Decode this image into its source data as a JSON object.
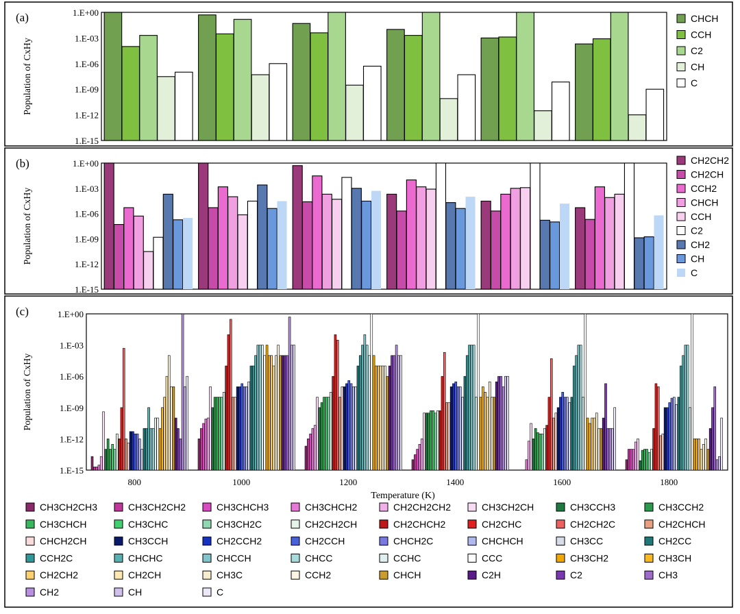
{
  "chart_data": [
    {
      "type": "bar",
      "panel_label": "(a)",
      "ylabel": "Population of CxHy",
      "yscale": "log",
      "ylim": [
        1e-15,
        1
      ],
      "yticks": [
        "1.E+00",
        "1.E-03",
        "1.E-06",
        "1.E-09",
        "1.E-12",
        "1.E-15"
      ],
      "categories": [
        "800",
        "1000",
        "1200",
        "1400",
        "1600",
        "1800"
      ],
      "legend_position": "right",
      "series": [
        {
          "name": "CHCH",
          "color": "#70a050",
          "values": [
            1,
            0.5,
            0.05,
            0.01,
            0.001,
            0.0002
          ]
        },
        {
          "name": "CCH",
          "color": "#7fc040",
          "values": [
            0.0001,
            0.003,
            0.004,
            0.002,
            0.0013,
            0.0008
          ]
        },
        {
          "name": "C2",
          "color": "#a8d890",
          "values": [
            0.002,
            0.15,
            1,
            1,
            1,
            1
          ]
        },
        {
          "name": "CH",
          "color": "#e2efd9",
          "values": [
            3e-08,
            5e-08,
            3e-09,
            8e-11,
            3e-12,
            1e-12
          ]
        },
        {
          "name": "C",
          "color": "#ffffff",
          "values": [
            1e-07,
            1e-06,
            5e-07,
            5e-08,
            7e-09,
            1e-09
          ]
        }
      ]
    },
    {
      "type": "bar",
      "panel_label": "(b)",
      "ylabel": "Population of CxHy",
      "yscale": "log",
      "ylim": [
        1e-15,
        1
      ],
      "yticks": [
        "1.E+00",
        "1.E-03",
        "1.E-06",
        "1.E-09",
        "1.E-12",
        "1.E-15"
      ],
      "categories": [
        "800",
        "1000",
        "1200",
        "1400",
        "1600",
        "1800"
      ],
      "legend_position": "right",
      "series": [
        {
          "name": "CH2CH2",
          "color": "#9b3a7a",
          "values": [
            1,
            1,
            0.5,
            0.0002,
            3e-05,
            5e-06
          ]
        },
        {
          "name": "CH2CH",
          "color": "#c74ba8",
          "values": [
            5e-08,
            5e-06,
            2.5e-05,
            2e-06,
            2e-06,
            2e-07
          ]
        },
        {
          "name": "CCH2",
          "color": "#ea6ad0",
          "values": [
            5e-06,
            0.0015,
            0.03,
            0.01,
            0.0002,
            0.0015
          ]
        },
        {
          "name": "CHCH",
          "color": "#f0a0e0",
          "values": [
            5e-07,
            0.0001,
            0.0002,
            0.0015,
            0.001,
            8e-05
          ]
        },
        {
          "name": "CCH",
          "color": "#f7d0f0",
          "values": [
            3e-11,
            7e-07,
            5e-05,
            0.0008,
            0.0012,
            0.0002
          ]
        },
        {
          "name": "C2",
          "color": "#ffffff",
          "values": [
            1.5e-09,
            3e-05,
            0.02,
            1,
            1,
            1
          ]
        },
        {
          "name": "CH2",
          "color": "#5878b0",
          "values": [
            0.0002,
            0.0025,
            0.001,
            2e-05,
            1.6e-07,
            1.3e-09
          ]
        },
        {
          "name": "CH",
          "color": "#6a98dd",
          "values": [
            1.8e-07,
            4e-06,
            3e-05,
            4e-06,
            1e-07,
            1.7e-09
          ]
        },
        {
          "name": "C",
          "color": "#bdd8f6",
          "values": [
            3e-07,
            3e-05,
            0.0005,
            0.0001,
            1.5e-05,
            6e-07
          ]
        }
      ]
    },
    {
      "type": "bar",
      "panel_label": "(c)",
      "ylabel": "Population of CxHy",
      "xlabel": "Temperature (K)",
      "yscale": "log",
      "ylim": [
        1e-15,
        1
      ],
      "yticks": [
        "1.E+00",
        "1.E-03",
        "1.E-06",
        "1.E-09",
        "1.E-12",
        "1.E-15"
      ],
      "categories": [
        "800",
        "1000",
        "1200",
        "1400",
        "1600",
        "1800"
      ],
      "legend_position": "bottom",
      "series": [
        {
          "name": "CH3CH2CH3",
          "color": "#8b2a6a",
          "values": [
            2e-14,
            1e-12,
            2e-13,
            1e-14,
            1e-15,
            1e-14
          ]
        },
        {
          "name": "CH3CH2CH2",
          "color": "#c0369a",
          "values": [
            2e-15,
            1e-11,
            1e-12,
            3e-14,
            1e-15,
            1e-13
          ]
        },
        {
          "name": "CH3CHCH3",
          "color": "#d84cc2",
          "values": [
            2e-15,
            3e-11,
            3e-12,
            1e-13,
            1e-15,
            1e-13
          ]
        },
        {
          "name": "CH3CHCH2",
          "color": "#e878d8",
          "values": [
            3e-15,
            8e-11,
            1e-11,
            3e-13,
            1e-14,
            1e-13
          ]
        },
        {
          "name": "CH2CH2CH2",
          "color": "#f2b0ea",
          "values": [
            2e-14,
            1e-10,
            2e-11,
            1e-12,
            6e-13,
            5e-13
          ]
        },
        {
          "name": "CH3CH2CH",
          "color": "#f8dcf4",
          "values": [
            4e-10,
            1e-07,
            1e-08,
            3e-10,
            3e-11,
            1e-12
          ]
        },
        {
          "name": "CH3CCH3",
          "color": "#1e7a40",
          "values": [
            1e-13,
            1e-09,
            1e-09,
            3e-10,
            1e-12,
            8e-15
          ]
        },
        {
          "name": "CH3CCH2",
          "color": "#2c9a4c",
          "values": [
            1e-12,
            1e-08,
            3e-09,
            3e-10,
            1e-11,
            8e-14
          ]
        },
        {
          "name": "CH3CHCH",
          "color": "#38b85c",
          "values": [
            1e-13,
            1e-08,
            1e-08,
            5e-10,
            4e-12,
            1e-13
          ]
        },
        {
          "name": "CH3CHC",
          "color": "#40d070",
          "values": [
            3e-13,
            1e-08,
            1e-08,
            5e-10,
            3e-12,
            1e-13
          ]
        },
        {
          "name": "CH3CH2C",
          "color": "#90d8b0",
          "values": [
            1e-13,
            1e-08,
            1e-08,
            3e-10,
            3e-12,
            5e-14
          ]
        },
        {
          "name": "CH2CH2CH",
          "color": "#e4f4e8",
          "values": [
            3e-12,
            3e-08,
            3e-08,
            5e-10,
            1e-11,
            1e-13
          ]
        },
        {
          "name": "CH2CHCH2",
          "color": "#c01818",
          "values": [
            1e-12,
            1e-05,
            1e-06,
            5e-10,
            2e-11,
            1e-11
          ]
        },
        {
          "name": "CH2CHC",
          "color": "#e02020",
          "values": [
            1e-09,
            0.01,
            0.01,
            1e-06,
            1e-08,
            2e-07
          ]
        },
        {
          "name": "CH2CH2C",
          "color": "#ee6060",
          "values": [
            0.0005,
            0.3,
            0.003,
            0.0002,
            5e-05,
            1e-07
          ]
        },
        {
          "name": "CH2CHCH",
          "color": "#e8a080",
          "values": [
            1e-12,
            1e-08,
            1e-08,
            3e-09,
            1e-10,
            2e-12
          ]
        },
        {
          "name": "CHCH2CH",
          "color": "#f8dcdc",
          "values": [
            4e-13,
            1e-08,
            1e-07,
            3e-09,
            3e-10,
            3e-12
          ]
        },
        {
          "name": "CH3CCH",
          "color": "#0a1a6a",
          "values": [
            5e-12,
            1e-07,
            1e-07,
            1e-07,
            1e-09,
            1e-09
          ]
        },
        {
          "name": "CH2CCH2",
          "color": "#1832c0",
          "values": [
            5e-12,
            1e-07,
            2e-07,
            2e-07,
            1e-08,
            1e-09
          ]
        },
        {
          "name": "CH2CCH",
          "color": "#4860d8",
          "values": [
            3e-12,
            2e-07,
            4e-07,
            3e-07,
            3e-08,
            3e-09
          ]
        },
        {
          "name": "CHCH2C",
          "color": "#7878e0",
          "values": [
            3e-12,
            1e-07,
            2e-07,
            1e-07,
            1e-08,
            8e-09
          ]
        },
        {
          "name": "CHCHCH",
          "color": "#b0b8ec",
          "values": [
            1e-12,
            1e-07,
            1e-07,
            1e-07,
            1e-08,
            1e-08
          ]
        },
        {
          "name": "CH3CC",
          "color": "#d8dce8",
          "values": [
            1e-13,
            3e-07,
            1e-07,
            1e-08,
            3e-09,
            2e-09
          ]
        },
        {
          "name": "CH2CC",
          "color": "#207878",
          "values": [
            1e-11,
            1e-05,
            1e-05,
            1e-06,
            1e-08,
            1e-08
          ]
        },
        {
          "name": "CCH2C",
          "color": "#309898",
          "values": [
            1e-11,
            1e-05,
            0.0001,
            0.0001,
            1e-05,
            1e-05
          ]
        },
        {
          "name": "CHCHC",
          "color": "#58b0b0",
          "values": [
            1e-09,
            0.0001,
            0.001,
            0.001,
            0.0001,
            0.0001
          ]
        },
        {
          "name": "CHCCH",
          "color": "#80c4cc",
          "values": [
            1e-11,
            0.001,
            0.01,
            0.001,
            0.001,
            0.001
          ]
        },
        {
          "name": "CHCC",
          "color": "#a8dcdc",
          "values": [
            1e-11,
            0.001,
            0.001,
            0.001,
            0.001,
            0.001
          ]
        },
        {
          "name": "CCHC",
          "color": "#e0f0f0",
          "values": [
            1e-10,
            0.001,
            0.0001,
            1e-08,
            1e-08,
            1e-09
          ]
        },
        {
          "name": "CCC",
          "color": "#ffffff",
          "values": [
            1e-10,
            0.0001,
            1,
            1,
            1,
            1
          ]
        },
        {
          "name": "CH3CH2",
          "color": "#f0a800",
          "values": [
            1e-11,
            0.001,
            0.0001,
            1e-08,
            1e-10,
            1e-12
          ]
        },
        {
          "name": "CH3CH",
          "color": "#f8b820",
          "values": [
            1e-09,
            0.0001,
            1e-05,
            1e-07,
            3e-11,
            1e-12
          ]
        },
        {
          "name": "CH2CH2",
          "color": "#fcd070",
          "values": [
            1e-08,
            0.0001,
            1e-05,
            3e-08,
            1e-10,
            1e-12
          ]
        },
        {
          "name": "CH2CH",
          "color": "#fce8b0",
          "values": [
            1e-06,
            1e-05,
            1e-05,
            1e-08,
            1e-10,
            1e-13
          ]
        },
        {
          "name": "CH3C",
          "color": "#f8ecd0",
          "values": [
            0.0001,
            0.0001,
            1e-05,
            3e-07,
            3e-10,
            3e-13
          ]
        },
        {
          "name": "CCH2",
          "color": "#fdf6e4",
          "values": [
            1e-07,
            0.001,
            1e-05,
            1e-08,
            1e-11,
            1e-12
          ]
        },
        {
          "name": "CHCH",
          "color": "#c89c30",
          "values": [
            1e-07,
            0.0001,
            1e-06,
            1e-08,
            1e-11,
            1e-13
          ]
        },
        {
          "name": "C2H",
          "color": "#5a1a88",
          "values": [
            1e-10,
            0.0001,
            1e-05,
            3e-07,
            1e-10,
            1e-11
          ]
        },
        {
          "name": "C2",
          "color": "#7a38b0",
          "values": [
            1e-11,
            0.0001,
            0.0001,
            1e-06,
            2e-07,
            1e-09
          ]
        },
        {
          "name": "CH3",
          "color": "#9c6cc8",
          "values": [
            1e-12,
            0.0001,
            0.0001,
            1e-06,
            1e-11,
            1e-07
          ]
        },
        {
          "name": "CH2",
          "color": "#b890e0",
          "values": [
            1,
            0.5,
            0.001,
            1e-07,
            1e-11,
            1e-14
          ]
        },
        {
          "name": "CH",
          "color": "#cfc0ec",
          "values": [
            1e-07,
            0.001,
            0.0001,
            1e-06,
            1e-11,
            2e-14
          ]
        },
        {
          "name": "C",
          "color": "#ece8f8",
          "values": [
            1e-06,
            0.001,
            0.0001,
            1e-06,
            1e-09,
            1e-10
          ]
        }
      ]
    }
  ]
}
